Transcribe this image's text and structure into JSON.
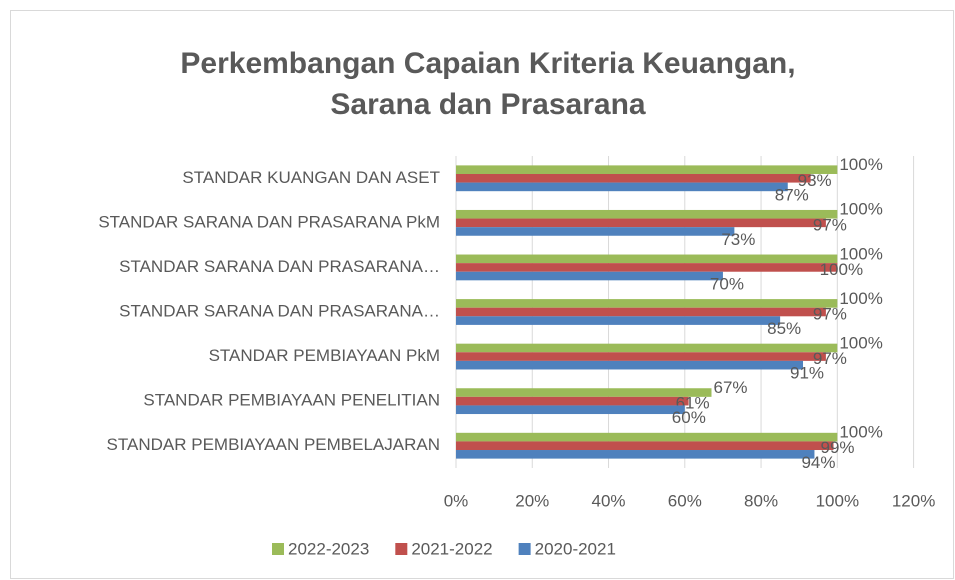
{
  "chart_data": {
    "type": "bar",
    "orientation": "horizontal",
    "title": [
      "Perkembangan Capaian Kriteria Keuangan,",
      "Sarana dan Prasarana"
    ],
    "categories": [
      "STANDAR KUANGAN DAN ASET",
      "STANDAR SARANA DAN PRASARANA PkM",
      "STANDAR SARANA DAN PRASARANA…",
      "STANDAR SARANA DAN PRASARANA…",
      "STANDAR PEMBIAYAAN PkM",
      "STANDAR PEMBIAYAAN PENELITIAN",
      "STANDAR PEMBIAYAAN PEMBELAJARAN"
    ],
    "series": [
      {
        "name": "2022-2023",
        "color": "#9bbb59",
        "values": [
          100,
          100,
          100,
          100,
          100,
          67,
          100
        ],
        "value_labels": [
          "100%",
          "100%",
          "100%",
          "100%",
          "100%",
          "67%",
          "100%"
        ]
      },
      {
        "name": "2021-2022",
        "color": "#c0504d",
        "values": [
          93,
          97,
          100,
          97,
          97,
          61,
          99
        ],
        "value_labels": [
          "93%",
          "97%",
          "100%",
          "97%",
          "97%",
          "61%",
          "99%"
        ]
      },
      {
        "name": "2020-2021",
        "color": "#4f81bd",
        "values": [
          87,
          73,
          70,
          85,
          91,
          60,
          94
        ],
        "value_labels": [
          "87%",
          "73%",
          "70%",
          "85%",
          "91%",
          "60%",
          "94%"
        ]
      }
    ],
    "xlim": [
      0,
      120
    ],
    "xticks": [
      {
        "value": 0,
        "label": "0%"
      },
      {
        "value": 20,
        "label": "20%"
      },
      {
        "value": 40,
        "label": "40%"
      },
      {
        "value": 60,
        "label": "60%"
      },
      {
        "value": 80,
        "label": "80%"
      },
      {
        "value": 100,
        "label": "100%"
      },
      {
        "value": 120,
        "label": "120%"
      }
    ],
    "grid": true,
    "legend": "bottom"
  }
}
